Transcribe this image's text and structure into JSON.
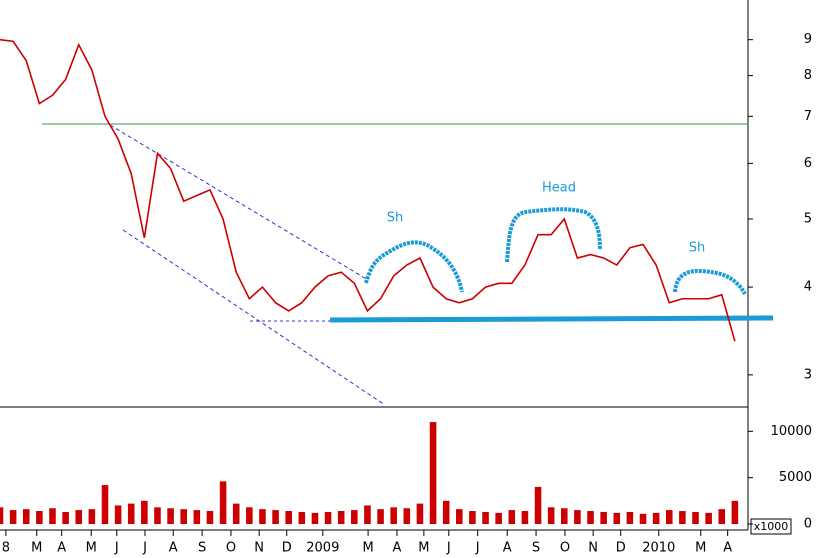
{
  "chart_data": [
    {
      "type": "line",
      "log_scale": true,
      "color": "#cc0000",
      "x": [
        0,
        2,
        4,
        6,
        8,
        10,
        12,
        14,
        16,
        18,
        20,
        22,
        24,
        26,
        28,
        30,
        32,
        34,
        36,
        38,
        40,
        42,
        44,
        46,
        48,
        50,
        52,
        54,
        56,
        58,
        60,
        62,
        64,
        66,
        68,
        70,
        72,
        74,
        76,
        78,
        80,
        82,
        84,
        86,
        88,
        90,
        92,
        94,
        96,
        98,
        100,
        102,
        104,
        106,
        108,
        110,
        112
      ],
      "values": [
        9.0,
        8.95,
        8.4,
        7.3,
        7.5,
        7.9,
        8.85,
        8.15,
        7.0,
        6.5,
        5.8,
        4.7,
        6.2,
        5.9,
        5.3,
        5.4,
        5.5,
        5.0,
        4.2,
        3.85,
        4.0,
        3.8,
        3.7,
        3.8,
        4.0,
        4.15,
        4.2,
        4.05,
        3.7,
        3.85,
        4.15,
        4.3,
        4.4,
        4.0,
        3.85,
        3.8,
        3.85,
        4.0,
        4.05,
        4.05,
        4.3,
        4.75,
        4.75,
        5.0,
        4.4,
        4.45,
        4.4,
        4.3,
        4.55,
        4.6,
        4.3,
        3.8,
        3.85,
        3.85,
        3.85,
        3.9,
        3.35
      ],
      "xlim": [
        0,
        114
      ],
      "xticks": [
        {
          "value": 0.9,
          "label": "8"
        },
        {
          "value": 5.6,
          "label": "M"
        },
        {
          "value": 9.4,
          "label": "A"
        },
        {
          "value": 13.9,
          "label": "M"
        },
        {
          "value": 17.8,
          "label": "J"
        },
        {
          "value": 22.1,
          "label": "J"
        },
        {
          "value": 26.4,
          "label": "A"
        },
        {
          "value": 30.8,
          "label": "S"
        },
        {
          "value": 35.2,
          "label": "O"
        },
        {
          "value": 39.5,
          "label": "N"
        },
        {
          "value": 43.7,
          "label": "D"
        },
        {
          "value": 49.2,
          "label": "2009"
        },
        {
          "value": 56.1,
          "label": "M"
        },
        {
          "value": 60.5,
          "label": "A"
        },
        {
          "value": 64.6,
          "label": "M"
        },
        {
          "value": 68.4,
          "label": "J"
        },
        {
          "value": 72.8,
          "label": "J"
        },
        {
          "value": 77.3,
          "label": "A"
        },
        {
          "value": 81.7,
          "label": "S"
        },
        {
          "value": 86.1,
          "label": "O"
        },
        {
          "value": 90.4,
          "label": "N"
        },
        {
          "value": 94.6,
          "label": "D"
        },
        {
          "value": 100.4,
          "label": "2010"
        },
        {
          "value": 106.8,
          "label": "M"
        },
        {
          "value": 110.9,
          "label": "A"
        }
      ],
      "ylim": [
        2.7,
        10.25
      ],
      "yticks": [
        3,
        4,
        5,
        6,
        7,
        8,
        9
      ],
      "annotations": [
        "Sh",
        "Head",
        "Sh"
      ]
    },
    {
      "type": "bar",
      "color": "#cc0000",
      "x": [
        0,
        2,
        4,
        6,
        8,
        10,
        12,
        14,
        16,
        18,
        20,
        22,
        24,
        26,
        28,
        30,
        32,
        34,
        36,
        38,
        40,
        42,
        44,
        46,
        48,
        50,
        52,
        54,
        56,
        58,
        60,
        62,
        64,
        66,
        68,
        70,
        72,
        74,
        76,
        78,
        80,
        82,
        84,
        86,
        88,
        90,
        92,
        94,
        96,
        98,
        100,
        102,
        104,
        106,
        108,
        110,
        112
      ],
      "values": [
        1800,
        1500,
        1600,
        1400,
        1700,
        1300,
        1500,
        1600,
        4200,
        2000,
        2200,
        2500,
        1800,
        1700,
        1600,
        1500,
        1400,
        4600,
        2200,
        1800,
        1600,
        1500,
        1400,
        1300,
        1200,
        1300,
        1400,
        1500,
        2000,
        1600,
        1800,
        1700,
        2200,
        11000,
        2500,
        1600,
        1400,
        1300,
        1200,
        1500,
        1400,
        4000,
        1800,
        1700,
        1500,
        1400,
        1300,
        1200,
        1300,
        1100,
        1200,
        1500,
        1400,
        1300,
        1200,
        1600,
        2500
      ],
      "xlim": [
        0,
        114
      ],
      "ylim": [
        0,
        12300
      ],
      "yticks": [
        0,
        5000,
        10000
      ],
      "unit_label": "x1000"
    }
  ]
}
